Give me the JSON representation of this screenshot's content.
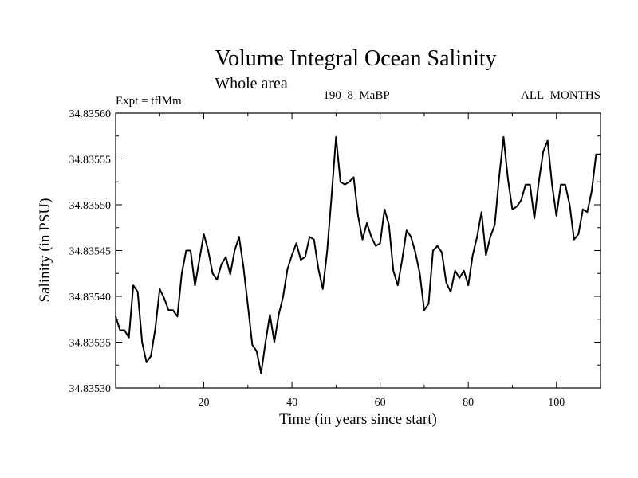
{
  "chart_data": {
    "type": "line",
    "title": "Volume Integral Ocean Salinity",
    "subtitle": "Whole area",
    "experiment_label": "Expt = tflMm",
    "run_label": "190_8_MaBP",
    "period_label": "ALL_MONTHS",
    "xlabel": "Time (in years since start)",
    "ylabel": "Salinity (in PSU)",
    "xlim": [
      0,
      110
    ],
    "ylim": [
      34.8353,
      34.8356
    ],
    "x_ticks": [
      20,
      40,
      60,
      80,
      100
    ],
    "x_tick_labels": [
      "20",
      "40",
      "60",
      "80",
      "100"
    ],
    "y_ticks": [
      34.8353,
      34.83535,
      34.8354,
      34.83545,
      34.8355,
      34.83555,
      34.8356
    ],
    "y_tick_labels": [
      "34.83530",
      "34.83535",
      "34.83540",
      "34.83545",
      "34.83550",
      "34.83555",
      "34.83560"
    ],
    "grid": false,
    "series": [
      {
        "name": "Salinity",
        "x": [
          0,
          1,
          2,
          3,
          4,
          5,
          6,
          7,
          8,
          9,
          10,
          11,
          12,
          13,
          14,
          15,
          16,
          17,
          18,
          19,
          20,
          21,
          22,
          23,
          24,
          25,
          26,
          27,
          28,
          29,
          30,
          31,
          32,
          33,
          34,
          35,
          36,
          37,
          38,
          39,
          40,
          41,
          42,
          43,
          44,
          45,
          46,
          47,
          48,
          49,
          50,
          51,
          52,
          53,
          54,
          55,
          56,
          57,
          58,
          59,
          60,
          61,
          62,
          63,
          64,
          65,
          66,
          67,
          68,
          69,
          70,
          71,
          72,
          73,
          74,
          75,
          76,
          77,
          78,
          79,
          80,
          81,
          82,
          83,
          84,
          85,
          86,
          87,
          88,
          89,
          90,
          91,
          92,
          93,
          94,
          95,
          96,
          97,
          98,
          99,
          100,
          101,
          102,
          103,
          104,
          105,
          106,
          107,
          108,
          109,
          110
        ],
        "values": [
          34.835378,
          34.835363,
          34.835363,
          34.835355,
          34.835412,
          34.835405,
          34.83535,
          34.835328,
          34.835335,
          34.835365,
          34.835408,
          34.835398,
          34.835385,
          34.835385,
          34.835378,
          34.835425,
          34.83545,
          34.83545,
          34.835412,
          34.83544,
          34.835468,
          34.83545,
          34.835425,
          34.835418,
          34.835435,
          34.835443,
          34.835424,
          34.83545,
          34.835465,
          34.835432,
          34.83539,
          34.835347,
          34.83534,
          34.835316,
          34.83535,
          34.83538,
          34.83535,
          34.83538,
          34.8354,
          34.83543,
          34.835445,
          34.835458,
          34.83544,
          34.835443,
          34.835465,
          34.835462,
          34.83543,
          34.835408,
          34.83545,
          34.83551,
          34.835574,
          34.835525,
          34.835522,
          34.835525,
          34.83553,
          34.835488,
          34.835462,
          34.83548,
          34.835465,
          34.835455,
          34.835458,
          34.835495,
          34.835478,
          34.835428,
          34.835412,
          34.83544,
          34.835472,
          34.835465,
          34.835448,
          34.835425,
          34.835385,
          34.835392,
          34.83545,
          34.835455,
          34.835448,
          34.835415,
          34.835405,
          34.835428,
          34.83542,
          34.835428,
          34.835412,
          34.835445,
          34.835465,
          34.835492,
          34.835445,
          34.835465,
          34.835478,
          34.83553,
          34.835574,
          34.835528,
          34.835495,
          34.835498,
          34.835505,
          34.835522,
          34.835522,
          34.835485,
          34.835525,
          34.835558,
          34.83557,
          34.835522,
          34.835488,
          34.835522,
          34.835522,
          34.8355,
          34.835462,
          34.835468,
          34.835495,
          34.835492,
          34.835515,
          34.835555,
          34.835555
        ]
      }
    ]
  }
}
